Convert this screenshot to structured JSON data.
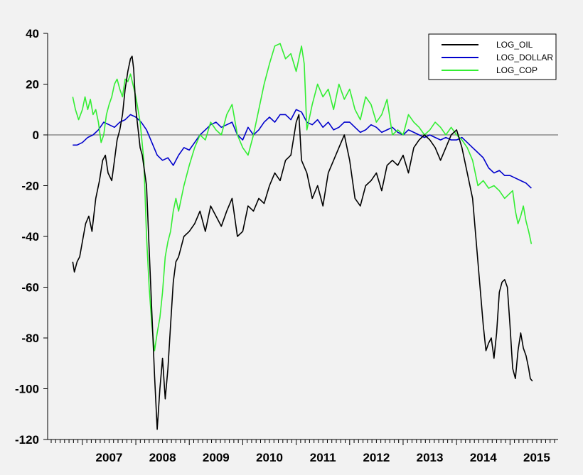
{
  "chart_data": {
    "type": "line",
    "title": "",
    "xlabel": "",
    "ylabel": "",
    "ylim": [
      -120,
      40
    ],
    "yticks": [
      -120,
      -100,
      -80,
      -60,
      -40,
      -20,
      0,
      20,
      40
    ],
    "xlim": [
      2006.35,
      2015.9
    ],
    "xticks": [
      {
        "value": 2007.0,
        "label": "2007"
      },
      {
        "value": 2008.0,
        "label": "2008"
      },
      {
        "value": 2009.0,
        "label": "2009"
      },
      {
        "value": 2010.0,
        "label": "2010"
      },
      {
        "value": 2011.0,
        "label": "2011"
      },
      {
        "value": 2012.0,
        "label": "2012"
      },
      {
        "value": 2013.0,
        "label": "2013"
      },
      {
        "value": 2014.0,
        "label": "2014"
      },
      {
        "value": 2015.0,
        "label": "2015"
      }
    ],
    "zero_line": true,
    "grid": false,
    "legend_position": "top-right",
    "series": [
      {
        "name": "LOG_OIL",
        "color": "#000000",
        "x": [
          2006.82,
          2006.85,
          2006.9,
          2006.95,
          2007.0,
          2007.06,
          2007.12,
          2007.18,
          2007.25,
          2007.32,
          2007.38,
          2007.43,
          2007.48,
          2007.55,
          2007.6,
          2007.65,
          2007.7,
          2007.75,
          2007.8,
          2007.85,
          2007.9,
          2007.93,
          2007.96,
          2008.0,
          2008.08,
          2008.12,
          2008.2,
          2008.25,
          2008.3,
          2008.35,
          2008.4,
          2008.45,
          2008.5,
          2008.55,
          2008.6,
          2008.65,
          2008.7,
          2008.75,
          2008.8,
          2008.9,
          2009.0,
          2009.1,
          2009.2,
          2009.3,
          2009.4,
          2009.5,
          2009.6,
          2009.7,
          2009.8,
          2009.9,
          2010.0,
          2010.1,
          2010.2,
          2010.3,
          2010.4,
          2010.5,
          2010.6,
          2010.7,
          2010.8,
          2010.9,
          2011.0,
          2011.05,
          2011.1,
          2011.2,
          2011.3,
          2011.4,
          2011.5,
          2011.6,
          2011.7,
          2011.8,
          2011.9,
          2012.0,
          2012.1,
          2012.2,
          2012.3,
          2012.4,
          2012.5,
          2012.6,
          2012.7,
          2012.8,
          2012.9,
          2013.0,
          2013.1,
          2013.2,
          2013.3,
          2013.4,
          2013.5,
          2013.6,
          2013.7,
          2013.8,
          2013.9,
          2014.0,
          2014.1,
          2014.2,
          2014.3,
          2014.4,
          2014.5,
          2014.55,
          2014.6,
          2014.65,
          2014.7,
          2014.75,
          2014.8,
          2014.85,
          2014.9,
          2014.95,
          2015.0,
          2015.05,
          2015.1,
          2015.15,
          2015.2,
          2015.25,
          2015.3,
          2015.35,
          2015.38,
          2015.42
        ],
        "values": [
          -50,
          -54,
          -50,
          -48,
          -42,
          -35,
          -32,
          -38,
          -25,
          -18,
          -10,
          -8,
          -15,
          -18,
          -10,
          -2,
          2,
          8,
          18,
          25,
          30,
          31,
          26,
          10,
          -5,
          -8,
          -20,
          -45,
          -70,
          -95,
          -116,
          -100,
          -88,
          -104,
          -92,
          -75,
          -58,
          -50,
          -48,
          -40,
          -38,
          -35,
          -30,
          -38,
          -28,
          -32,
          -36,
          -30,
          -25,
          -40,
          -38,
          -28,
          -30,
          -25,
          -27,
          -20,
          -15,
          -18,
          -10,
          -8,
          5,
          8,
          -10,
          -15,
          -25,
          -20,
          -28,
          -15,
          -10,
          -5,
          0,
          -10,
          -25,
          -28,
          -20,
          -18,
          -15,
          -22,
          -12,
          -10,
          -12,
          -8,
          -15,
          -5,
          -2,
          0,
          -2,
          -5,
          -10,
          -5,
          0,
          2,
          -5,
          -15,
          -25,
          -50,
          -75,
          -85,
          -82,
          -80,
          -88,
          -78,
          -62,
          -58,
          -57,
          -60,
          -75,
          -92,
          -96,
          -85,
          -78,
          -84,
          -87,
          -92,
          -96,
          -97
        ]
      },
      {
        "name": "LOG_DOLLAR",
        "color": "#0000cc",
        "x": [
          2006.82,
          2006.9,
          2007.0,
          2007.1,
          2007.2,
          2007.3,
          2007.4,
          2007.5,
          2007.6,
          2007.7,
          2007.8,
          2007.9,
          2008.0,
          2008.1,
          2008.2,
          2008.3,
          2008.4,
          2008.5,
          2008.6,
          2008.7,
          2008.8,
          2008.9,
          2009.0,
          2009.1,
          2009.2,
          2009.3,
          2009.4,
          2009.5,
          2009.6,
          2009.7,
          2009.8,
          2009.9,
          2010.0,
          2010.1,
          2010.2,
          2010.3,
          2010.4,
          2010.5,
          2010.6,
          2010.7,
          2010.8,
          2010.9,
          2011.0,
          2011.1,
          2011.2,
          2011.3,
          2011.4,
          2011.5,
          2011.6,
          2011.7,
          2011.8,
          2011.9,
          2012.0,
          2012.1,
          2012.2,
          2012.3,
          2012.4,
          2012.5,
          2012.6,
          2012.7,
          2012.8,
          2012.9,
          2013.0,
          2013.1,
          2013.2,
          2013.3,
          2013.4,
          2013.5,
          2013.6,
          2013.7,
          2013.8,
          2013.9,
          2014.0,
          2014.1,
          2014.2,
          2014.3,
          2014.4,
          2014.5,
          2014.6,
          2014.7,
          2014.8,
          2014.9,
          2015.0,
          2015.1,
          2015.2,
          2015.3,
          2015.4
        ],
        "values": [
          -4,
          -4,
          -3,
          -1,
          0,
          2,
          5,
          4,
          3,
          5,
          6,
          8,
          7,
          5,
          2,
          -3,
          -8,
          -10,
          -9,
          -12,
          -8,
          -5,
          -6,
          -3,
          0,
          2,
          4,
          5,
          3,
          4,
          5,
          0,
          -2,
          3,
          0,
          2,
          5,
          7,
          5,
          8,
          8,
          6,
          10,
          9,
          5,
          4,
          6,
          3,
          5,
          2,
          3,
          5,
          5,
          3,
          1,
          2,
          4,
          3,
          1,
          2,
          3,
          1,
          0,
          2,
          1,
          0,
          -1,
          0,
          -1,
          -2,
          -1,
          -2,
          -2,
          -1,
          -3,
          -5,
          -7,
          -9,
          -13,
          -15,
          -14,
          -16,
          -16,
          -17,
          -18,
          -19,
          -21
        ]
      },
      {
        "name": "LOG_COP",
        "color": "#33ee33",
        "x": [
          2006.82,
          2006.87,
          2006.93,
          2007.0,
          2007.05,
          2007.1,
          2007.15,
          2007.2,
          2007.25,
          2007.3,
          2007.35,
          2007.4,
          2007.45,
          2007.5,
          2007.55,
          2007.6,
          2007.65,
          2007.7,
          2007.75,
          2007.8,
          2007.85,
          2007.9,
          2008.0,
          2008.08,
          2008.15,
          2008.2,
          2008.25,
          2008.3,
          2008.35,
          2008.4,
          2008.45,
          2008.5,
          2008.55,
          2008.6,
          2008.65,
          2008.7,
          2008.75,
          2008.8,
          2008.9,
          2009.0,
          2009.1,
          2009.2,
          2009.3,
          2009.4,
          2009.5,
          2009.6,
          2009.7,
          2009.8,
          2009.9,
          2010.0,
          2010.1,
          2010.2,
          2010.3,
          2010.4,
          2010.5,
          2010.6,
          2010.7,
          2010.8,
          2010.9,
          2011.0,
          2011.1,
          2011.15,
          2011.2,
          2011.3,
          2011.4,
          2011.5,
          2011.6,
          2011.7,
          2011.8,
          2011.9,
          2012.0,
          2012.1,
          2012.2,
          2012.3,
          2012.4,
          2012.5,
          2012.6,
          2012.7,
          2012.8,
          2012.9,
          2013.0,
          2013.1,
          2013.2,
          2013.3,
          2013.4,
          2013.5,
          2013.6,
          2013.7,
          2013.8,
          2013.9,
          2014.0,
          2014.1,
          2014.2,
          2014.3,
          2014.4,
          2014.5,
          2014.6,
          2014.7,
          2014.8,
          2014.9,
          2015.0,
          2015.05,
          2015.1,
          2015.15,
          2015.2,
          2015.25,
          2015.3,
          2015.35,
          2015.4
        ],
        "values": [
          15,
          10,
          6,
          10,
          15,
          10,
          14,
          8,
          10,
          5,
          -3,
          0,
          8,
          12,
          15,
          20,
          22,
          18,
          15,
          22,
          21,
          24,
          15,
          5,
          -10,
          -40,
          -60,
          -75,
          -85,
          -78,
          -72,
          -62,
          -48,
          -42,
          -38,
          -30,
          -25,
          -30,
          -20,
          -12,
          -5,
          0,
          -2,
          5,
          2,
          0,
          8,
          12,
          0,
          -5,
          -8,
          0,
          10,
          20,
          28,
          35,
          36,
          30,
          32,
          25,
          35,
          28,
          2,
          12,
          20,
          15,
          18,
          10,
          20,
          14,
          18,
          10,
          6,
          15,
          12,
          5,
          8,
          14,
          0,
          2,
          0,
          8,
          5,
          3,
          0,
          2,
          5,
          3,
          0,
          3,
          0,
          -2,
          -5,
          -10,
          -20,
          -18,
          -21,
          -20,
          -22,
          -25,
          -23,
          -22,
          -30,
          -35,
          -32,
          -28,
          -34,
          -38,
          -43
        ]
      }
    ]
  }
}
